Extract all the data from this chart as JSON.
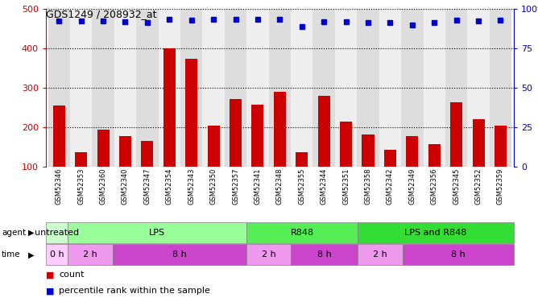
{
  "title": "GDS1249 / 208932_at",
  "samples": [
    "GSM52346",
    "GSM52353",
    "GSM52360",
    "GSM52340",
    "GSM52347",
    "GSM52354",
    "GSM52343",
    "GSM52350",
    "GSM52357",
    "GSM52341",
    "GSM52348",
    "GSM52355",
    "GSM52344",
    "GSM52351",
    "GSM52358",
    "GSM52342",
    "GSM52349",
    "GSM52356",
    "GSM52345",
    "GSM52352",
    "GSM52359"
  ],
  "bar_values": [
    255,
    138,
    195,
    178,
    165,
    400,
    375,
    205,
    272,
    258,
    290,
    138,
    280,
    215,
    182,
    143,
    178,
    158,
    263,
    220,
    205
  ],
  "dot_values": [
    470,
    470,
    470,
    468,
    465,
    475,
    472,
    475,
    475,
    475,
    475,
    456,
    468,
    468,
    465,
    465,
    460,
    465,
    472,
    470,
    472
  ],
  "ylim_left": [
    100,
    500
  ],
  "ylim_right": [
    0,
    100
  ],
  "yticks_left": [
    100,
    200,
    300,
    400,
    500
  ],
  "yticks_right": [
    0,
    25,
    50,
    75,
    100
  ],
  "bar_color": "#cc0000",
  "dot_color": "#0000cc",
  "actual_agent": [
    {
      "label": "untreated",
      "start": 0,
      "end": 1,
      "color": "#ccffcc"
    },
    {
      "label": "LPS",
      "start": 1,
      "end": 9,
      "color": "#99ff99"
    },
    {
      "label": "R848",
      "start": 9,
      "end": 14,
      "color": "#55ee55"
    },
    {
      "label": "LPS and R848",
      "start": 14,
      "end": 21,
      "color": "#33dd33"
    }
  ],
  "actual_time": [
    {
      "label": "0 h",
      "start": 0,
      "end": 1,
      "color": "#ffccff"
    },
    {
      "label": "2 h",
      "start": 1,
      "end": 3,
      "color": "#ee99ee"
    },
    {
      "label": "8 h",
      "start": 3,
      "end": 9,
      "color": "#cc44cc"
    },
    {
      "label": "2 h",
      "start": 9,
      "end": 11,
      "color": "#ee99ee"
    },
    {
      "label": "8 h",
      "start": 11,
      "end": 14,
      "color": "#cc44cc"
    },
    {
      "label": "2 h",
      "start": 14,
      "end": 16,
      "color": "#ee99ee"
    },
    {
      "label": "8 h",
      "start": 16,
      "end": 21,
      "color": "#cc44cc"
    }
  ],
  "legend_count_color": "#cc0000",
  "legend_pct_color": "#0000cc",
  "legend_count_label": "count",
  "legend_pct_label": "percentile rank within the sample"
}
